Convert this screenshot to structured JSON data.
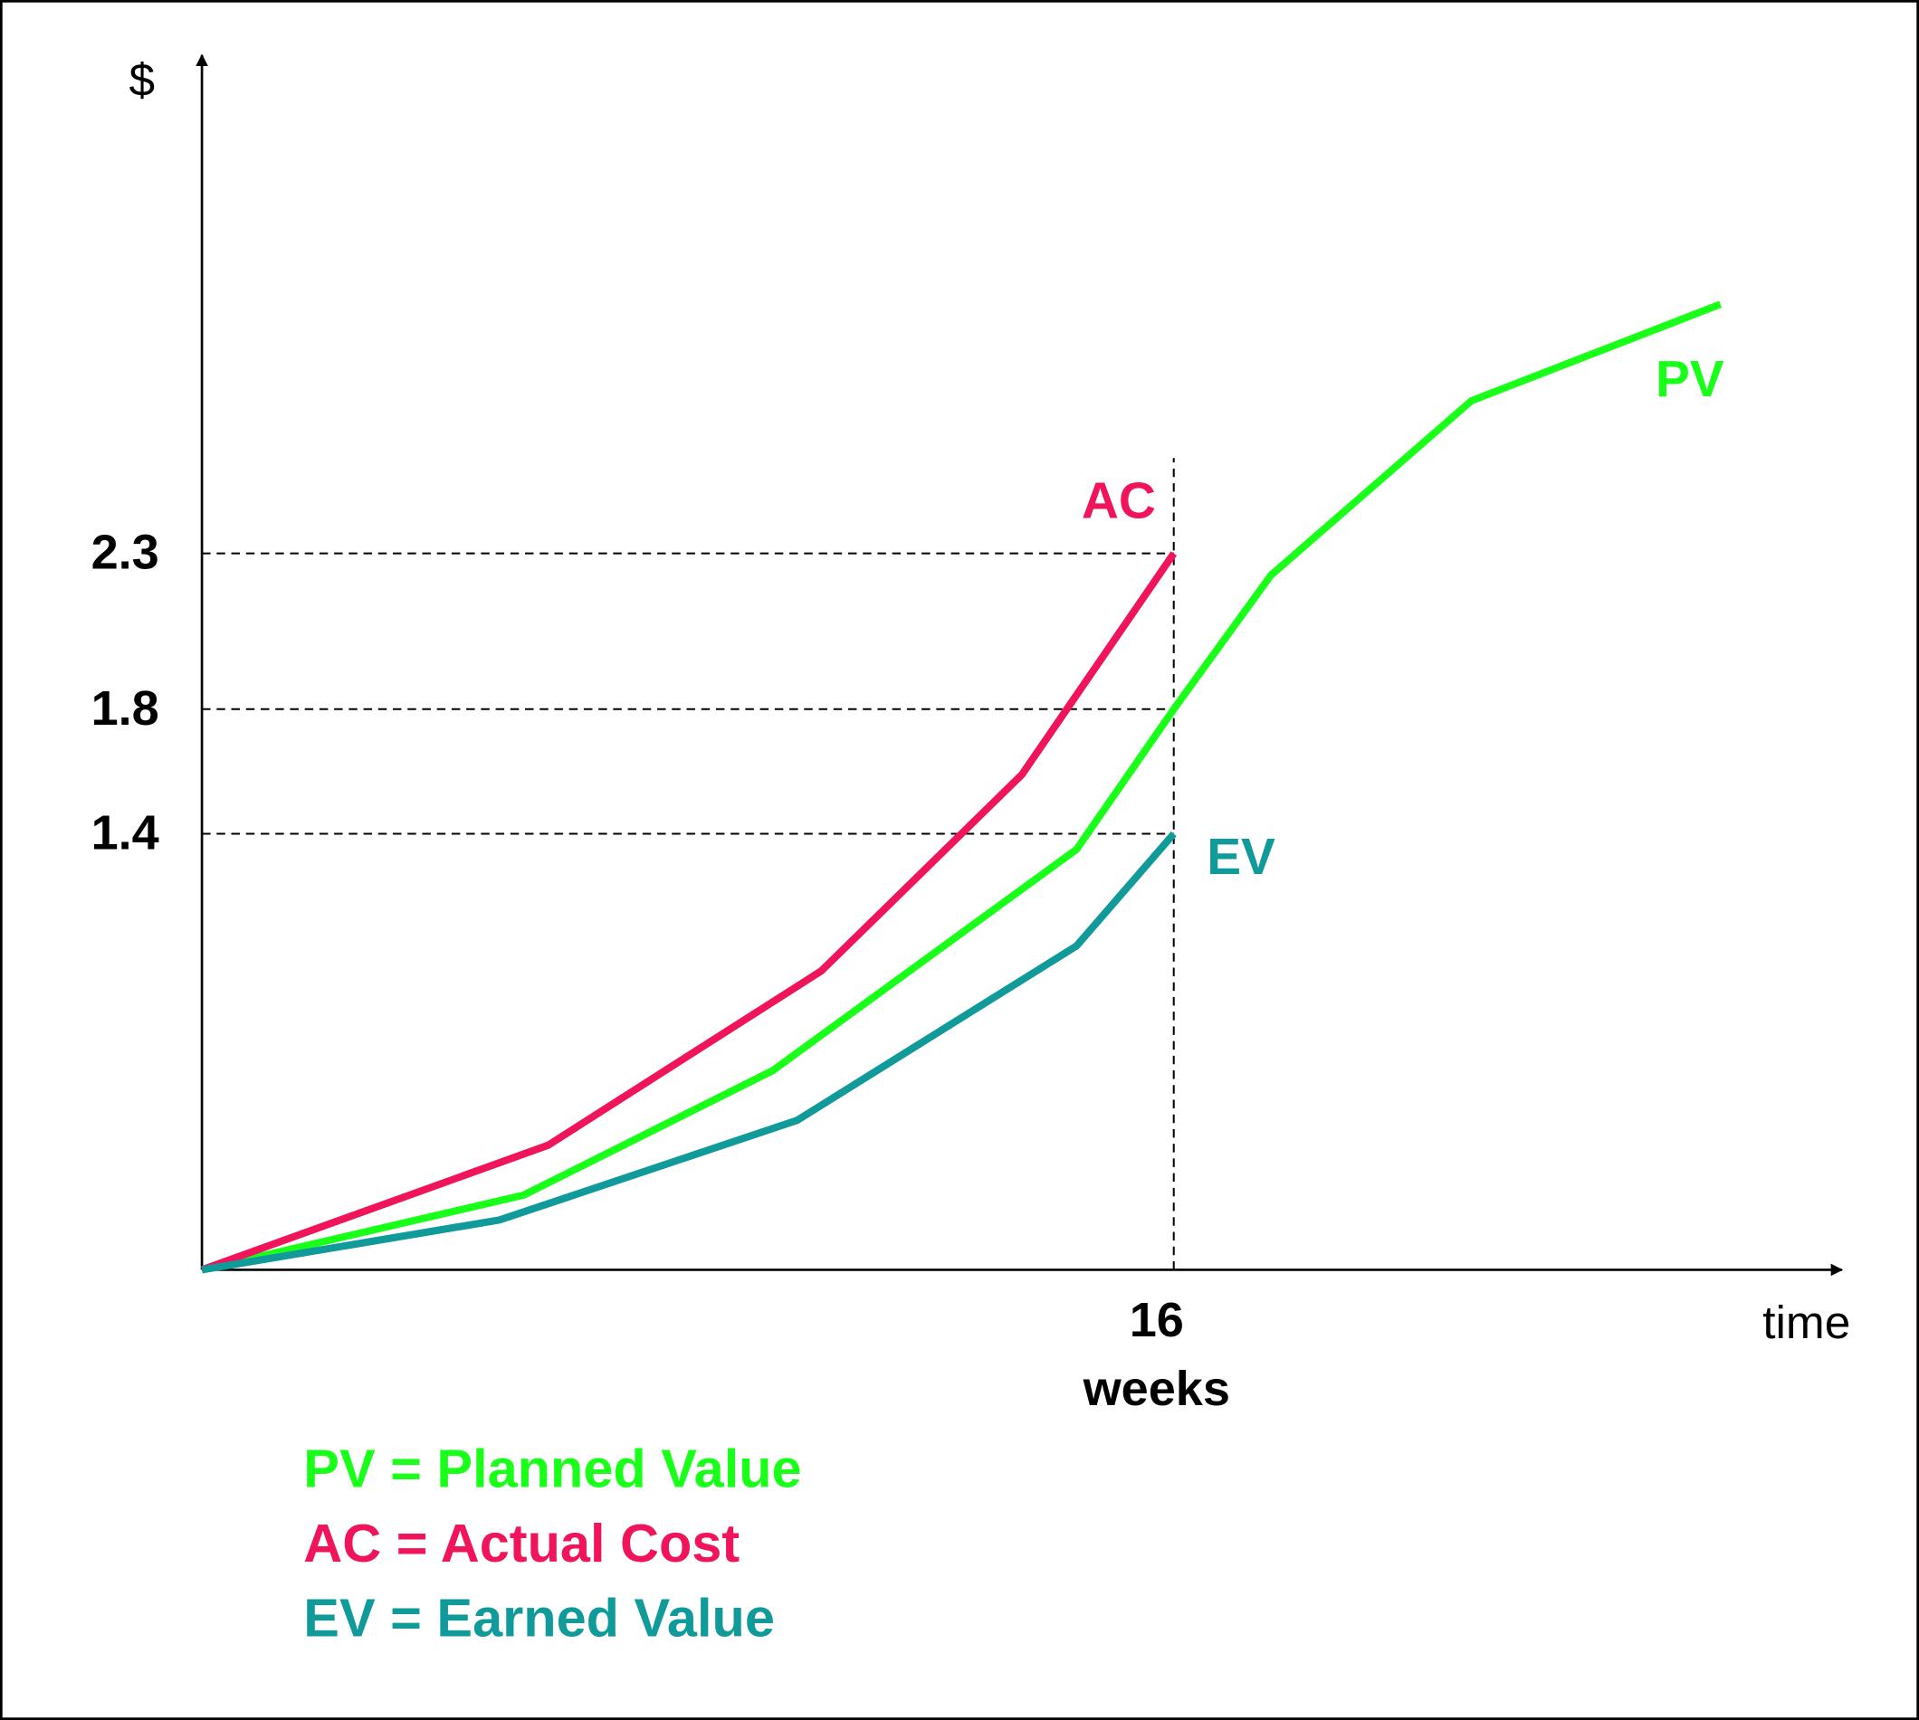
{
  "chart_data": {
    "type": "line",
    "y_label": "$",
    "x_label": "time",
    "x_unit": "weeks",
    "xlim": [
      0,
      27
    ],
    "ylim": [
      0,
      3.9
    ],
    "xticks": [
      16
    ],
    "yticks": [
      1.4,
      1.8,
      2.3
    ],
    "grid": true,
    "series": [
      {
        "name": "PV",
        "legend_label": "PV = Planned Value",
        "color": "#1aff1a",
        "x": [
          0,
          5.3,
          9.4,
          14.4,
          16,
          17.6,
          20.9,
          25.0
        ],
        "values": [
          0,
          0.24,
          0.64,
          1.35,
          1.8,
          2.23,
          2.79,
          3.1
        ]
      },
      {
        "name": "AC",
        "legend_label": "AC = Actual Cost",
        "color": "#f0145a",
        "x": [
          0,
          5.7,
          10.2,
          13.5,
          16
        ],
        "values": [
          0,
          0.4,
          0.96,
          1.59,
          2.3
        ]
      },
      {
        "name": "EV",
        "legend_label": "EV = Earned Value",
        "color": "#109a9a",
        "x": [
          0,
          4.9,
          9.8,
          14.4,
          16
        ],
        "values": [
          0,
          0.16,
          0.48,
          1.04,
          1.4
        ]
      }
    ]
  }
}
